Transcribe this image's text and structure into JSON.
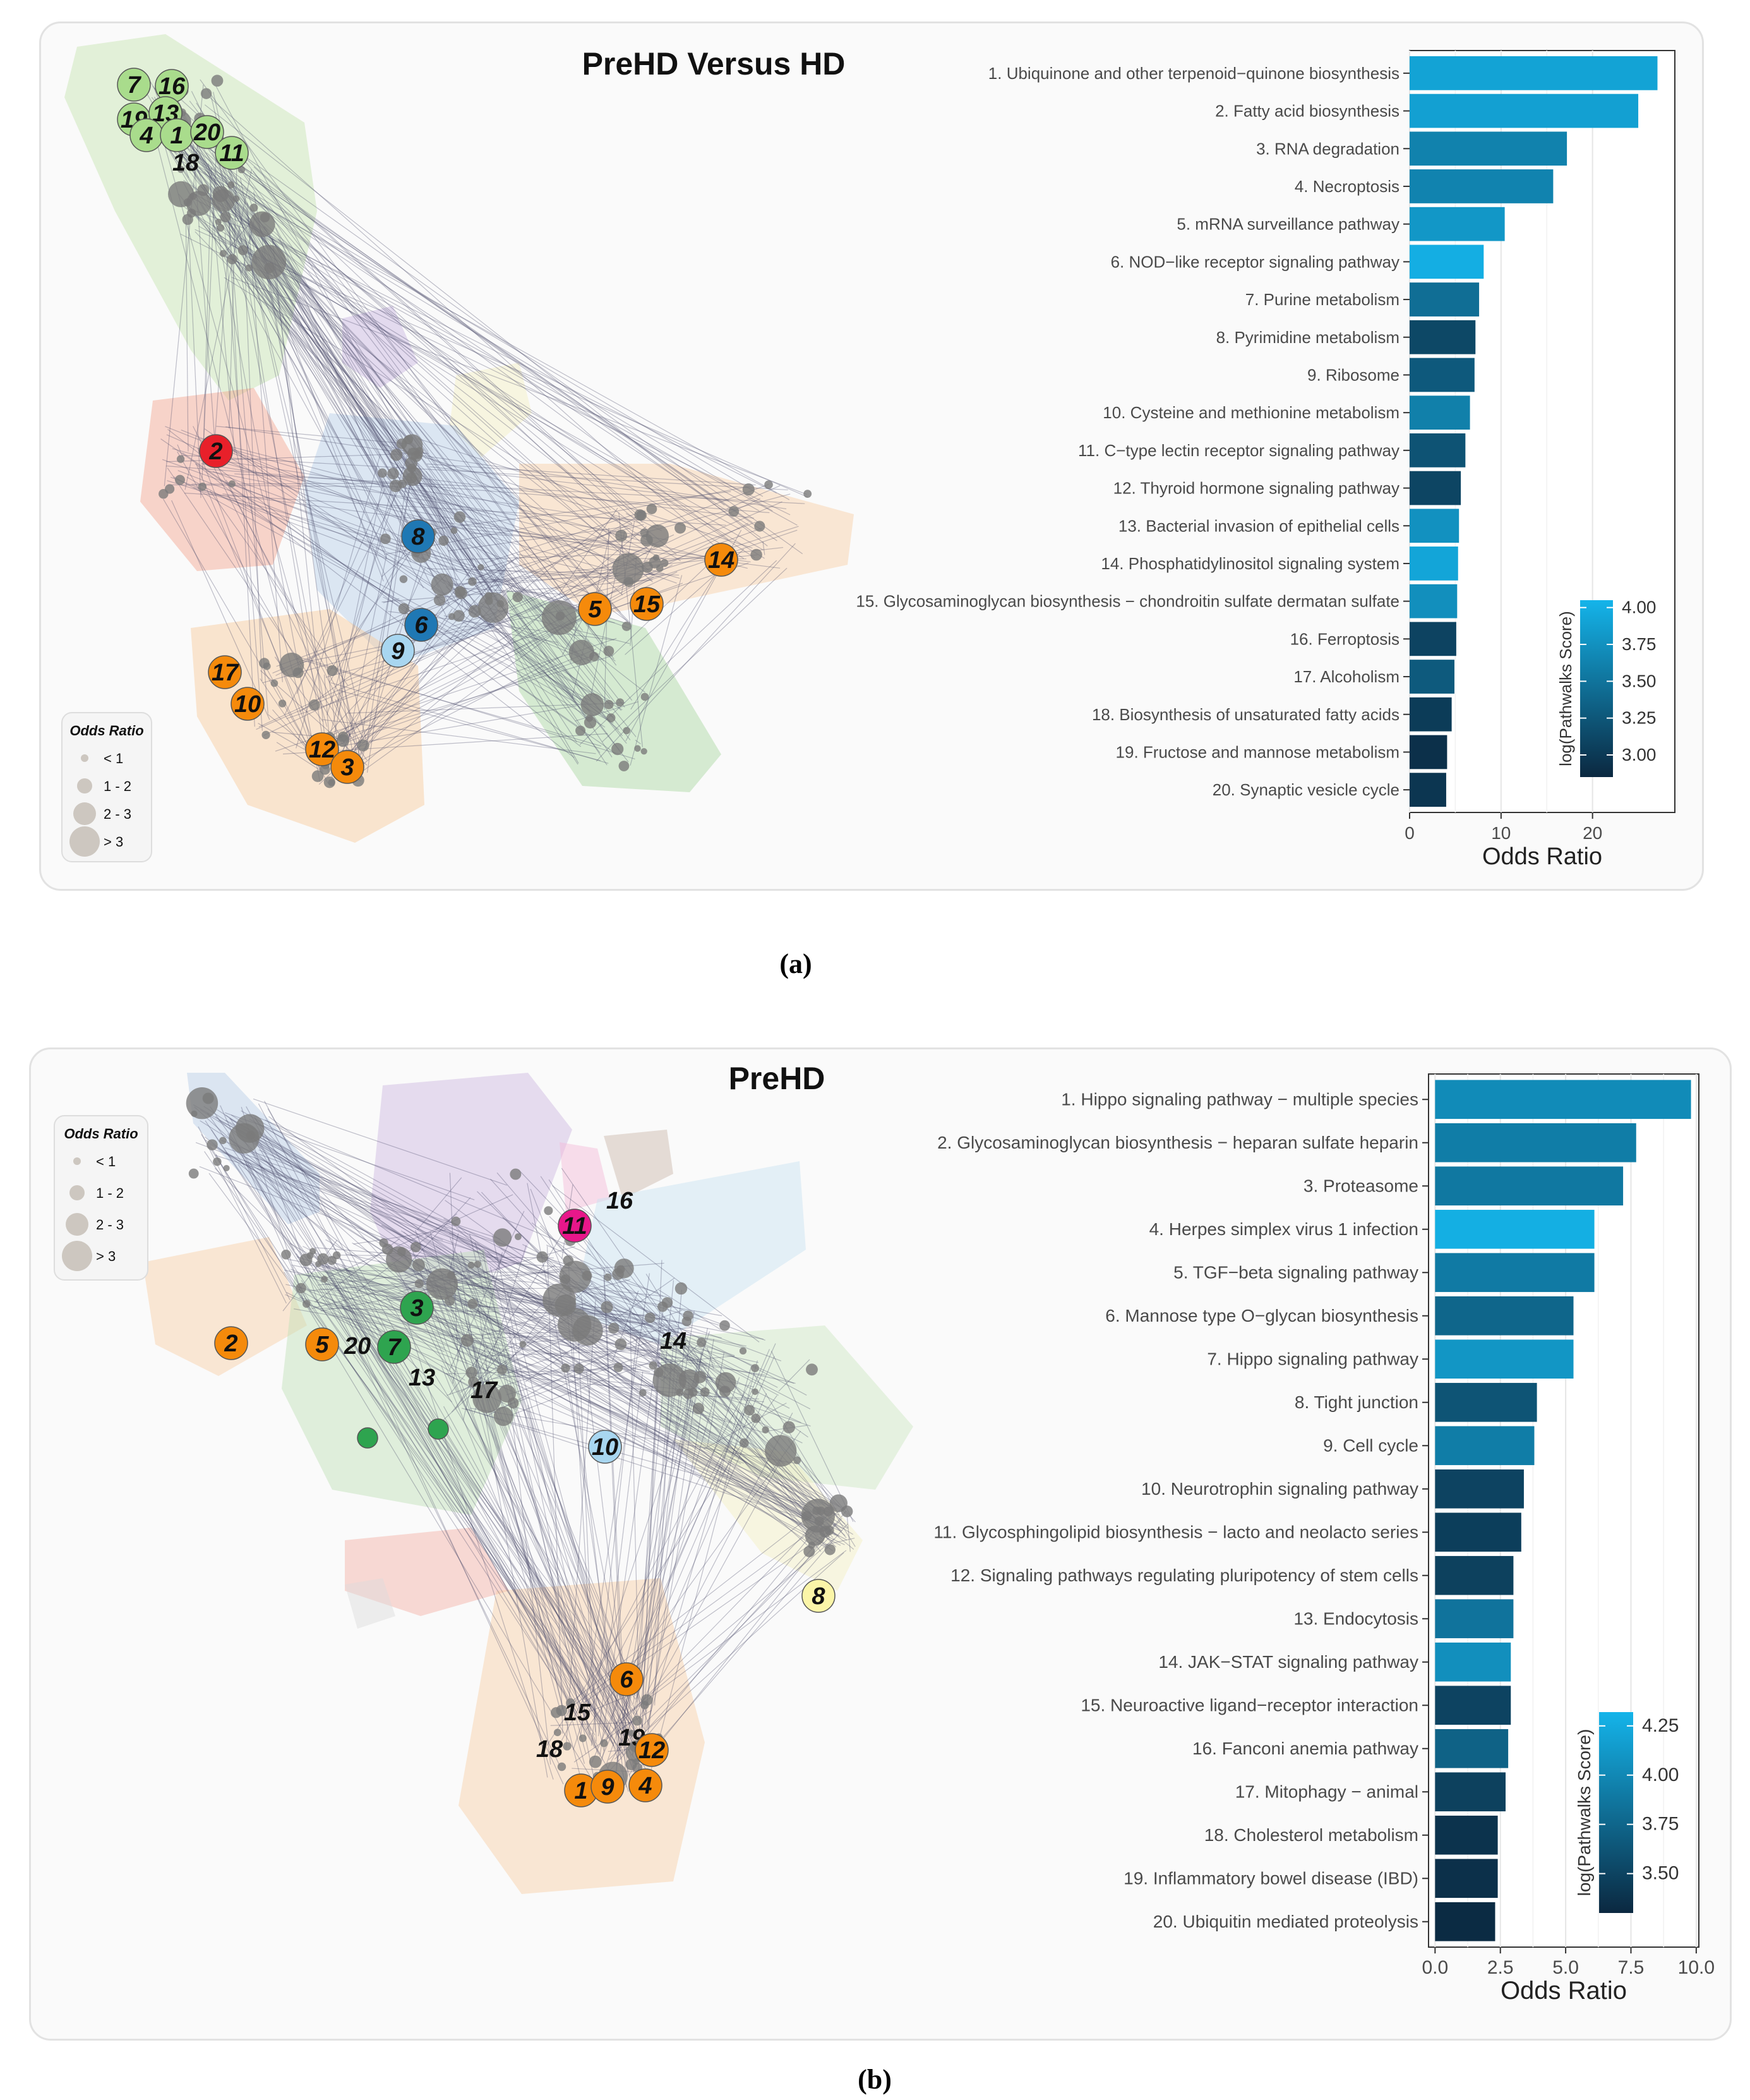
{
  "panels": [
    {
      "id": "a",
      "caption": "(a)",
      "network": {
        "title": "PreHD Versus HD",
        "legend": {
          "title": "Odds Ratio",
          "items": [
            "< 1",
            "1 - 2",
            "2 - 3",
            "> 3"
          ]
        }
      },
      "chart_data": {
        "type": "bar",
        "orientation": "horizontal",
        "categories": [
          "1. Ubiquinone and other terpenoid−quinone biosynthesis",
          "2. Fatty acid biosynthesis",
          "3. RNA degradation",
          "4. Necroptosis",
          "5. mRNA surveillance pathway",
          "6. NOD−like receptor signaling pathway",
          "7. Purine metabolism",
          "8. Pyrimidine metabolism",
          "9. Ribosome",
          "10. Cysteine and methionine metabolism",
          "11. C−type lectin receptor signaling pathway",
          "12. Thyroid hormone signaling pathway",
          "13. Bacterial invasion of epithelial cells",
          "14. Phosphatidylinositol signaling system",
          "15. Glycosaminoglycan biosynthesis − chondroitin sulfate dermatan sulfate",
          "16. Ferroptosis",
          "17. Alcoholism",
          "18. Biosynthesis of unsaturated fatty acids",
          "19. Fructose and mannose metabolism",
          "20. Synaptic vesicle cycle"
        ],
        "values": [
          27.1,
          25.0,
          17.2,
          15.7,
          10.4,
          8.1,
          7.6,
          7.2,
          7.1,
          6.6,
          6.1,
          5.6,
          5.4,
          5.3,
          5.2,
          5.1,
          4.9,
          4.6,
          4.1,
          4.0
        ],
        "color_values": [
          3.9,
          3.88,
          3.62,
          3.63,
          3.8,
          4.0,
          3.45,
          3.12,
          3.27,
          3.6,
          3.22,
          3.1,
          3.75,
          3.92,
          3.73,
          3.08,
          3.28,
          3.02,
          2.92,
          2.97
        ],
        "xlabel": "Odds Ratio",
        "xlim": [
          0,
          29
        ],
        "xticks": [
          0,
          10,
          20
        ],
        "xtick_labels": [
          "0",
          "10",
          "20"
        ],
        "colorbar": {
          "title": "log(Pathwalks Score)",
          "min": 2.85,
          "max": 4.05,
          "ticks": [
            4.0,
            3.75,
            3.5,
            3.25,
            3.0
          ],
          "tick_labels": [
            "4.00",
            "3.75",
            "3.50",
            "3.25",
            "3.00"
          ]
        }
      }
    },
    {
      "id": "b",
      "caption": "(b)",
      "network": {
        "title": "PreHD",
        "legend": {
          "title": "Odds Ratio",
          "items": [
            "< 1",
            "1 - 2",
            "2 - 3",
            "> 3"
          ]
        }
      },
      "chart_data": {
        "type": "bar",
        "orientation": "horizontal",
        "categories": [
          "1. Hippo signaling pathway − multiple species",
          "2. Glycosaminoglycan biosynthesis − heparan sulfate  heparin",
          "3. Proteasome",
          "4. Herpes simplex virus 1 infection",
          "5. TGF−beta signaling pathway",
          "6. Mannose type O−glycan biosynthesis",
          "7. Hippo signaling pathway",
          "8. Tight junction",
          "9. Cell cycle",
          "10. Neurotrophin signaling pathway",
          "11. Glycosphingolipid biosynthesis − lacto and neolacto series",
          "12. Signaling pathways regulating pluripotency of stem cells",
          "13. Endocytosis",
          "14. JAK−STAT signaling pathway",
          "15. Neuroactive ligand−receptor interaction",
          "16. Fanconi anemia pathway",
          "17. Mitophagy − animal",
          "18. Cholesterol metabolism",
          "19. Inflammatory bowel disease (IBD)",
          "20. Ubiquitin mediated proteolysis"
        ],
        "values": [
          9.8,
          7.7,
          7.2,
          6.1,
          6.1,
          5.3,
          5.3,
          3.9,
          3.8,
          3.4,
          3.3,
          3.0,
          3.0,
          2.9,
          2.9,
          2.8,
          2.7,
          2.4,
          2.4,
          2.3
        ],
        "color_values": [
          4.02,
          3.92,
          3.88,
          4.28,
          3.9,
          3.75,
          4.1,
          3.62,
          3.92,
          3.5,
          3.46,
          3.48,
          3.85,
          4.05,
          3.5,
          3.72,
          3.48,
          3.38,
          3.36,
          3.32
        ],
        "xlabel": "Odds Ratio",
        "xlim": [
          -0.25,
          10.1
        ],
        "xticks": [
          0,
          2.5,
          5,
          7.5,
          10
        ],
        "xtick_labels": [
          "0.0",
          "2.5",
          "5.0",
          "7.5",
          "10.0"
        ],
        "colorbar": {
          "title": "log(Pathwalks Score)",
          "min": 3.3,
          "max": 4.32,
          "ticks": [
            4.25,
            4.0,
            3.75,
            3.5
          ],
          "tick_labels": [
            "4.25",
            "4.00",
            "3.75",
            "3.50"
          ]
        }
      }
    }
  ],
  "colors": {
    "bar_low": "#0b2840",
    "bar_high": "#14b4ea",
    "orange_node": "#f58a0b",
    "green_node_a": "#a9dc8c",
    "green_node_b": "#2ea44f",
    "red_node": "#e8202a",
    "blue_node": "#1f78b4",
    "light_blue_node": "#a8d6f0",
    "pink_node": "#e8178a",
    "yellow_node": "#fbf5a8"
  }
}
